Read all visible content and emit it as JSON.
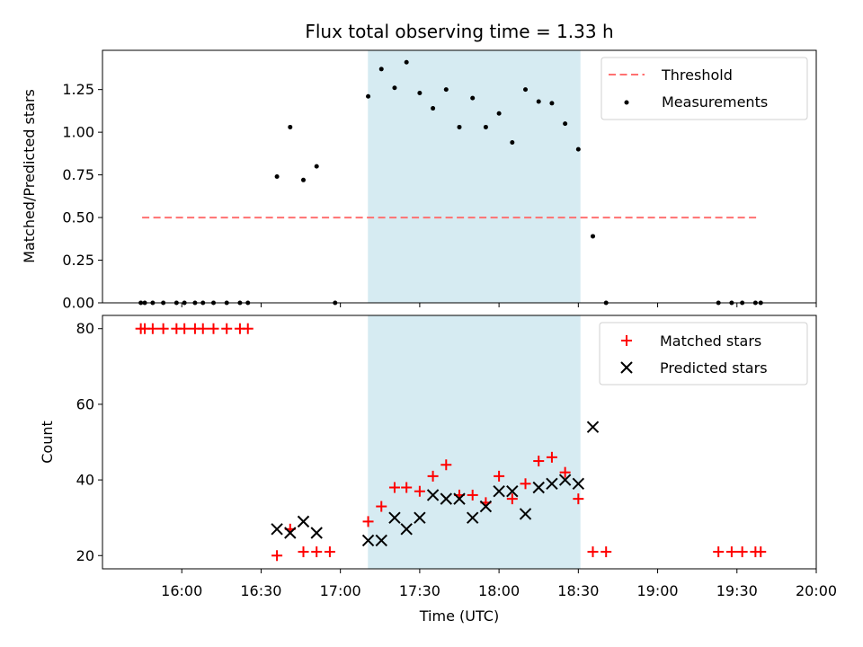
{
  "chart_data": {
    "type": "scatter",
    "title": "Flux total observing time = 1.33 h",
    "xlabel": "Time (UTC)",
    "x_unit": "minutes after 15:45 UTC",
    "xlim": [
      -15,
      255
    ],
    "xticks": [
      {
        "value": 15,
        "label": "16:00"
      },
      {
        "value": 45,
        "label": "16:30"
      },
      {
        "value": 75,
        "label": "17:00"
      },
      {
        "value": 105,
        "label": "17:30"
      },
      {
        "value": 135,
        "label": "18:00"
      },
      {
        "value": 165,
        "label": "18:30"
      },
      {
        "value": 195,
        "label": "19:00"
      },
      {
        "value": 225,
        "label": "19:30"
      },
      {
        "value": 255,
        "label": "20:00"
      }
    ],
    "observing_window": {
      "start": 85.4,
      "end": 165.8,
      "color": "#add8e6"
    },
    "top_panel": {
      "ylabel": "Matched/Predicted stars",
      "ylim": [
        0,
        1.48
      ],
      "yticks": [
        {
          "value": 0.0,
          "label": "0.00"
        },
        {
          "value": 0.25,
          "label": "0.25"
        },
        {
          "value": 0.5,
          "label": "0.50"
        },
        {
          "value": 0.75,
          "label": "0.75"
        },
        {
          "value": 1.0,
          "label": "1.00"
        },
        {
          "value": 1.25,
          "label": "1.25"
        }
      ],
      "threshold": {
        "name": "Threshold",
        "value": 0.5,
        "x_start": 0,
        "x_end": 233,
        "color": "#ff7070"
      },
      "series": [
        {
          "name": "Measurements",
          "color": "#000000",
          "points": [
            [
              -0.5,
              0
            ],
            [
              1,
              0
            ],
            [
              4,
              0
            ],
            [
              8,
              0
            ],
            [
              13,
              0
            ],
            [
              16,
              0
            ],
            [
              20,
              0
            ],
            [
              23,
              0
            ],
            [
              27,
              0
            ],
            [
              32,
              0
            ],
            [
              37,
              0
            ],
            [
              40,
              0
            ],
            [
              51,
              0.74
            ],
            [
              56,
              1.03
            ],
            [
              61,
              0.72
            ],
            [
              66,
              0.8
            ],
            [
              73,
              0
            ],
            [
              85.5,
              1.21
            ],
            [
              90.5,
              1.37
            ],
            [
              95.5,
              1.26
            ],
            [
              100,
              1.41
            ],
            [
              105,
              1.23
            ],
            [
              110,
              1.14
            ],
            [
              115,
              1.25
            ],
            [
              120,
              1.03
            ],
            [
              125,
              1.2
            ],
            [
              130,
              1.03
            ],
            [
              135,
              1.11
            ],
            [
              140,
              0.94
            ],
            [
              145,
              1.25
            ],
            [
              150,
              1.18
            ],
            [
              155,
              1.17
            ],
            [
              160,
              1.05
            ],
            [
              165,
              0.9
            ],
            [
              170.5,
              0.39
            ],
            [
              175.5,
              0
            ],
            [
              218,
              0
            ],
            [
              223,
              0
            ],
            [
              227,
              0
            ],
            [
              232,
              0
            ],
            [
              234,
              0
            ]
          ]
        }
      ],
      "legend": [
        "Threshold",
        "Measurements"
      ]
    },
    "bottom_panel": {
      "ylabel": "Count",
      "ylim": [
        16.5,
        83.5
      ],
      "yticks": [
        {
          "value": 20,
          "label": "20"
        },
        {
          "value": 40,
          "label": "40"
        },
        {
          "value": 60,
          "label": "60"
        },
        {
          "value": 80,
          "label": "80"
        }
      ],
      "series": [
        {
          "name": "Matched stars",
          "marker": "plus",
          "color": "#ff0000",
          "points": [
            [
              -0.5,
              80
            ],
            [
              1,
              80
            ],
            [
              4,
              80
            ],
            [
              8,
              80
            ],
            [
              13,
              80
            ],
            [
              16,
              80
            ],
            [
              20,
              80
            ],
            [
              23,
              80
            ],
            [
              27,
              80
            ],
            [
              32,
              80
            ],
            [
              37,
              80
            ],
            [
              40,
              80
            ],
            [
              51,
              20
            ],
            [
              56,
              27
            ],
            [
              61,
              21
            ],
            [
              66,
              21
            ],
            [
              71,
              21
            ],
            [
              85.5,
              29
            ],
            [
              90.5,
              33
            ],
            [
              95.5,
              38
            ],
            [
              100,
              38
            ],
            [
              105,
              37
            ],
            [
              110,
              41
            ],
            [
              115,
              44
            ],
            [
              120,
              36
            ],
            [
              125,
              36
            ],
            [
              130,
              34
            ],
            [
              135,
              41
            ],
            [
              140,
              35
            ],
            [
              145,
              39
            ],
            [
              150,
              45
            ],
            [
              155,
              46
            ],
            [
              160,
              42
            ],
            [
              165,
              35
            ],
            [
              170.5,
              21
            ],
            [
              175.5,
              21
            ],
            [
              218,
              21
            ],
            [
              223,
              21
            ],
            [
              227,
              21
            ],
            [
              232,
              21
            ],
            [
              234,
              21
            ]
          ]
        },
        {
          "name": "Predicted stars",
          "marker": "x",
          "color": "#000000",
          "points": [
            [
              51,
              27
            ],
            [
              56,
              26
            ],
            [
              61,
              29
            ],
            [
              66,
              26
            ],
            [
              85.5,
              24
            ],
            [
              90.5,
              24
            ],
            [
              95.5,
              30
            ],
            [
              100,
              27
            ],
            [
              105,
              30
            ],
            [
              110,
              36
            ],
            [
              115,
              35
            ],
            [
              120,
              35
            ],
            [
              125,
              30
            ],
            [
              130,
              33
            ],
            [
              135,
              37
            ],
            [
              140,
              37
            ],
            [
              145,
              31
            ],
            [
              150,
              38
            ],
            [
              155,
              39
            ],
            [
              160,
              40
            ],
            [
              165,
              39
            ],
            [
              170.5,
              54
            ]
          ]
        }
      ],
      "legend": [
        "Matched stars",
        "Predicted stars"
      ]
    }
  }
}
